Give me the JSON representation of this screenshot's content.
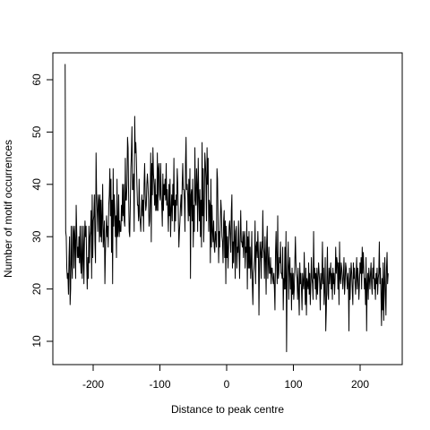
{
  "chart_data": {
    "type": "line",
    "title": "",
    "xlabel": "Distance to peak centre",
    "ylabel": "Number of motif occurrences",
    "xlim": [
      -250,
      250
    ],
    "ylim": [
      5,
      65
    ],
    "x_ticks": [
      -200,
      -100,
      0,
      100,
      200
    ],
    "y_ticks": [
      10,
      20,
      30,
      40,
      50,
      60
    ],
    "grid": false,
    "legend": "none",
    "line_color": "#000000",
    "x_start": -240,
    "x_step": 1,
    "series": [
      {
        "values": [
          63,
          31,
          30,
          24,
          22,
          23,
          19,
          26,
          30,
          17,
          20,
          32,
          25,
          22,
          32,
          31,
          24,
          32,
          29,
          22,
          36,
          31,
          26,
          28,
          26,
          30,
          25,
          32,
          25,
          23,
          32,
          22,
          26,
          32,
          21,
          29,
          33,
          30,
          32,
          25,
          20,
          26,
          22,
          32,
          25,
          30,
          31,
          35,
          22,
          38,
          26,
          33,
          34,
          38,
          29,
          25,
          46,
          38,
          35,
          31,
          38,
          37,
          29,
          38,
          30,
          37,
          29,
          34,
          40,
          28,
          30,
          33,
          21,
          27,
          31,
          34,
          30,
          32,
          28,
          36,
          38,
          43,
          34,
          41,
          27,
          37,
          21,
          43,
          32,
          38,
          35,
          30,
          34,
          26,
          41,
          30,
          31,
          38,
          30,
          33,
          31,
          31,
          36,
          33,
          40,
          34,
          40,
          33,
          32,
          45,
          37,
          37,
          40,
          49,
          47,
          38,
          31,
          30,
          36,
          43,
          46,
          51,
          39,
          39,
          42,
          31,
          53,
          46,
          48,
          45,
          40,
          36,
          36,
          33,
          41,
          34,
          33,
          31,
          35,
          38,
          34,
          37,
          31,
          40,
          44,
          38,
          35,
          36,
          40,
          42,
          40,
          37,
          32,
          33,
          38,
          46,
          29,
          44,
          38,
          47,
          42,
          40,
          36,
          41,
          35,
          38,
          35,
          46,
          35,
          43,
          44,
          38,
          37,
          44,
          38,
          36,
          32,
          42,
          35,
          40,
          38,
          41,
          37,
          44,
          36,
          39,
          35,
          31,
          40,
          34,
          41,
          30,
          35,
          38,
          33,
          40,
          36,
          45,
          31,
          37,
          33,
          38,
          36,
          43,
          40,
          34,
          28,
          31,
          33,
          36,
          38,
          34,
          40,
          44,
          39,
          39,
          37,
          31,
          44,
          49,
          39,
          40,
          38,
          33,
          41,
          34,
          43,
          22,
          38,
          39,
          33,
          41,
          28,
          36,
          31,
          47,
          37,
          36,
          43,
          40,
          31,
          45,
          38,
          33,
          39,
          30,
          37,
          28,
          48,
          34,
          43,
          29,
          35,
          46,
          44,
          41,
          33,
          47,
          40,
          45,
          31,
          37,
          36,
          25,
          41,
          28,
          36,
          31,
          29,
          33,
          28,
          27,
          31,
          30,
          28,
          43,
          41,
          33,
          25,
          31,
          28,
          33,
          37,
          35,
          30,
          29,
          25,
          33,
          35,
          26,
          33,
          21,
          32,
          26,
          30,
          24,
          28,
          32,
          33,
          30,
          27,
          35,
          38,
          24,
          29,
          25,
          33,
          30,
          22,
          31,
          32,
          24,
          28,
          27,
          33,
          27,
          22,
          30,
          35,
          29,
          29,
          28,
          31,
          26,
          30,
          31,
          24,
          28,
          27,
          33,
          20,
          30,
          24,
          31,
          24,
          28,
          22,
          25,
          31,
          21,
          17,
          23,
          24,
          26,
          33,
          21,
          28,
          29,
          26,
          31,
          27,
          15,
          25,
          29,
          27,
          22,
          29,
          26,
          35,
          28,
          27,
          22,
          30,
          26,
          19,
          29,
          32,
          22,
          25,
          28,
          23,
          23,
          26,
          21,
          24,
          24,
          22,
          21,
          23,
          20,
          16,
          27,
          31,
          25,
          21,
          34,
          22,
          23,
          26,
          25,
          29,
          23,
          23,
          22,
          28,
          16,
          22,
          20,
          28,
          20,
          31,
          8,
          22,
          25,
          29,
          18,
          24,
          26,
          20,
          23,
          16,
          24,
          19,
          23,
          18,
          20,
          25,
          30,
          25,
          23,
          22,
          18,
          24,
          19,
          15,
          25,
          21,
          23,
          20,
          16,
          23,
          21,
          20,
          27,
          21,
          17,
          24,
          15,
          22,
          21,
          20,
          25,
          19,
          23,
          17,
          21,
          26,
          22,
          21,
          18,
          31,
          22,
          24,
          20,
          23,
          18,
          24,
          19,
          22,
          25,
          23,
          21,
          16,
          23,
          20,
          22,
          29,
          21,
          24,
          17,
          20,
          26,
          12,
          16,
          22,
          28,
          19,
          18,
          24,
          21,
          23,
          25,
          20,
          23,
          18,
          24,
          21,
          23,
          19,
          22,
          28,
          23,
          26,
          25,
          20,
          25,
          17,
          29,
          22,
          21,
          25,
          24,
          22,
          20,
          23,
          26,
          19,
          21,
          25,
          24,
          22,
          20,
          23,
          21,
          12,
          24,
          18,
          22,
          25,
          23,
          20,
          17,
          25,
          22,
          24,
          21,
          19,
          23,
          26,
          20,
          24,
          22,
          18,
          21,
          25,
          23,
          26,
          20,
          28,
          23,
          27,
          24,
          20,
          22,
          17,
          26,
          12,
          21,
          23,
          18,
          24,
          22,
          20,
          23,
          25,
          21,
          19,
          24,
          22,
          26,
          20,
          22,
          18,
          23,
          21,
          24,
          19,
          22,
          23,
          29,
          21,
          24,
          19,
          13,
          22,
          16,
          25,
          14,
          21,
          26,
          19,
          15,
          24,
          27,
          21,
          23
        ]
      }
    ]
  }
}
